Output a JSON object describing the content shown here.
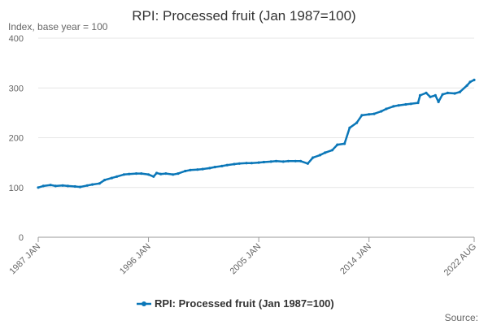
{
  "chart_data": {
    "type": "line",
    "title": "RPI: Processed fruit (Jan 1987=100)",
    "subtitle": "Index, base year = 100",
    "source_label": "Source:",
    "ylim": [
      0,
      400
    ],
    "y_ticks": [
      0,
      100,
      200,
      300,
      400
    ],
    "x_ticks": [
      "1987 JAN",
      "1996 JAN",
      "2005 JAN",
      "2014 JAN",
      "2022 AUG"
    ],
    "x_range": [
      "1987-01",
      "2022-08"
    ],
    "grid": true,
    "legend_position": "bottom",
    "series": [
      {
        "name": "RPI: Processed fruit (Jan 1987=100)",
        "color": "#0b77b8",
        "points": [
          [
            "1987-01",
            100
          ],
          [
            "1987-06",
            103
          ],
          [
            "1988-01",
            105
          ],
          [
            "1988-06",
            103
          ],
          [
            "1989-01",
            104
          ],
          [
            "1989-06",
            103
          ],
          [
            "1990-01",
            102
          ],
          [
            "1990-06",
            101
          ],
          [
            "1991-01",
            104
          ],
          [
            "1991-06",
            106
          ],
          [
            "1992-01",
            108
          ],
          [
            "1992-06",
            115
          ],
          [
            "1993-01",
            119
          ],
          [
            "1993-06",
            122
          ],
          [
            "1994-01",
            126
          ],
          [
            "1994-06",
            127
          ],
          [
            "1995-01",
            128
          ],
          [
            "1995-06",
            128
          ],
          [
            "1996-01",
            126
          ],
          [
            "1996-06",
            122
          ],
          [
            "1996-09",
            129
          ],
          [
            "1997-01",
            127
          ],
          [
            "1997-06",
            128
          ],
          [
            "1998-01",
            126
          ],
          [
            "1998-06",
            128
          ],
          [
            "1999-01",
            133
          ],
          [
            "1999-06",
            135
          ],
          [
            "2000-01",
            136
          ],
          [
            "2000-06",
            137
          ],
          [
            "2001-01",
            139
          ],
          [
            "2001-06",
            141
          ],
          [
            "2002-01",
            143
          ],
          [
            "2002-06",
            145
          ],
          [
            "2003-01",
            147
          ],
          [
            "2003-06",
            148
          ],
          [
            "2004-01",
            149
          ],
          [
            "2004-06",
            149
          ],
          [
            "2005-01",
            150
          ],
          [
            "2005-06",
            151
          ],
          [
            "2006-01",
            152
          ],
          [
            "2006-06",
            153
          ],
          [
            "2007-01",
            152
          ],
          [
            "2007-06",
            153
          ],
          [
            "2008-01",
            153
          ],
          [
            "2008-06",
            153
          ],
          [
            "2009-01",
            148
          ],
          [
            "2009-06",
            160
          ],
          [
            "2010-01",
            165
          ],
          [
            "2010-06",
            170
          ],
          [
            "2011-01",
            175
          ],
          [
            "2011-06",
            186
          ],
          [
            "2012-01",
            188
          ],
          [
            "2012-06",
            220
          ],
          [
            "2013-01",
            230
          ],
          [
            "2013-06",
            245
          ],
          [
            "2014-01",
            247
          ],
          [
            "2014-06",
            248
          ],
          [
            "2015-01",
            253
          ],
          [
            "2015-06",
            258
          ],
          [
            "2016-01",
            263
          ],
          [
            "2016-06",
            265
          ],
          [
            "2017-01",
            267
          ],
          [
            "2017-06",
            268
          ],
          [
            "2018-01",
            270
          ],
          [
            "2018-03",
            285
          ],
          [
            "2018-09",
            290
          ],
          [
            "2019-01",
            282
          ],
          [
            "2019-06",
            285
          ],
          [
            "2019-09",
            272
          ],
          [
            "2020-01",
            287
          ],
          [
            "2020-06",
            290
          ],
          [
            "2021-01",
            289
          ],
          [
            "2021-06",
            292
          ],
          [
            "2022-01",
            305
          ],
          [
            "2022-04",
            312
          ],
          [
            "2022-08",
            316
          ]
        ]
      }
    ]
  }
}
